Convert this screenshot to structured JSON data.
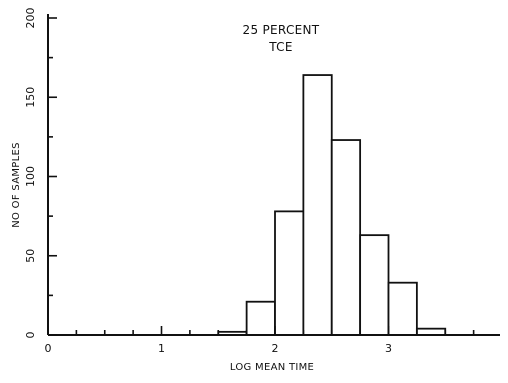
{
  "chart_data": {
    "type": "bar",
    "title": "25 PERCENT",
    "subtitle": "TCE",
    "xlabel": "LOG MEAN TIME",
    "ylabel": "NO OF SAMPLES",
    "xlim": [
      0,
      4
    ],
    "ylim": [
      0,
      200
    ],
    "x_ticks": [
      "0",
      "1",
      "2",
      "3"
    ],
    "x_tick_values": [
      0,
      1,
      2,
      3
    ],
    "y_ticks": [
      "0",
      "50",
      "100",
      "150",
      "200"
    ],
    "y_tick_values": [
      0,
      50,
      100,
      150,
      200
    ],
    "bin_edges": [
      0,
      0.25,
      0.5,
      0.75,
      1.0,
      1.25,
      1.5,
      1.75,
      2.0,
      2.25,
      2.5,
      2.75,
      3.0,
      3.25,
      3.5,
      3.75,
      4.0
    ],
    "values": [
      0,
      0,
      0,
      0,
      0,
      0,
      2,
      21,
      78,
      164,
      123,
      63,
      33,
      4,
      0,
      0
    ],
    "grid": false,
    "legend": "none"
  }
}
